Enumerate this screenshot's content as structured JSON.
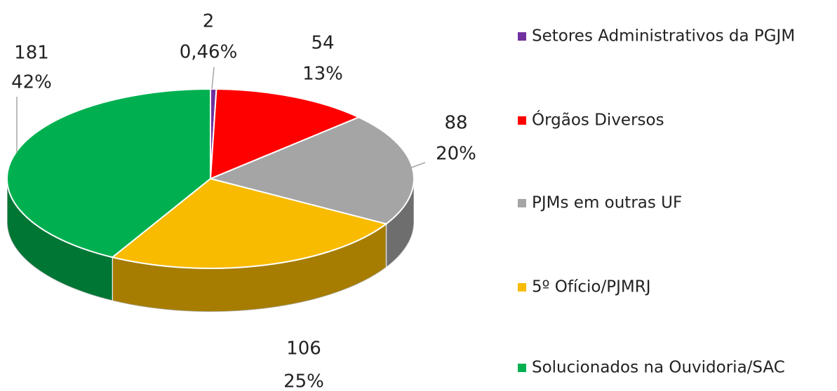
{
  "chart_data": {
    "type": "pie3d",
    "categories": [
      "Setores Administrativos da PGJM",
      "Órgãos Diversos",
      "PJMs em outras UF",
      "5º Ofício/PJMRJ",
      "Solucionados na Ouvidoria/SAC"
    ],
    "values": [
      2,
      54,
      88,
      106,
      181
    ],
    "percentages": [
      0.46,
      13,
      20,
      25,
      42
    ],
    "percentage_labels": [
      "0,46%",
      "13%",
      "20%",
      "25%",
      "42%"
    ],
    "colors": [
      "#7030a0",
      "#ff0000",
      "#a5a5a5",
      "#f8bb00",
      "#00b050"
    ],
    "legend": "right"
  }
}
